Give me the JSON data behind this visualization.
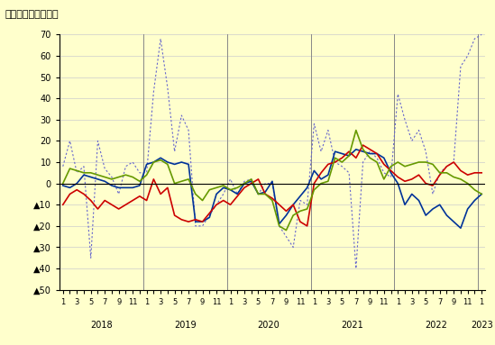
{
  "title": "（前年同月比、％）",
  "ylim": [
    -50,
    70
  ],
  "bg_color": "#ffffcc",
  "grid_color": "#cccccc",
  "blue_line": [
    -1,
    -2,
    0,
    4,
    3,
    2,
    1,
    -1,
    -2,
    -2,
    -2,
    -1,
    9,
    10,
    12,
    10,
    9,
    10,
    9,
    -18,
    -18,
    -16,
    -5,
    -2,
    -3,
    -5,
    0,
    1,
    -5,
    -4,
    1,
    -19,
    -15,
    -10,
    -6,
    -2,
    6,
    2,
    4,
    15,
    14,
    13,
    16,
    15,
    14,
    14,
    12,
    5,
    0,
    -10,
    -5,
    -8,
    -15,
    -12,
    -10,
    -15,
    -18,
    -21,
    -12,
    -8,
    -5
  ],
  "red_line": [
    -10,
    -5,
    -3,
    -5,
    -8,
    -12,
    -8,
    -10,
    -12,
    -10,
    -8,
    -6,
    -8,
    2,
    -5,
    -2,
    -15,
    -17,
    -18,
    -17,
    -18,
    -14,
    -10,
    -8,
    -10,
    -6,
    -2,
    0,
    2,
    -5,
    -7,
    -10,
    -13,
    -10,
    -18,
    -20,
    0,
    5,
    9,
    10,
    12,
    15,
    12,
    18,
    16,
    14,
    9,
    6,
    3,
    1,
    2,
    4,
    0,
    -1,
    4,
    8,
    10,
    6,
    4,
    5,
    5
  ],
  "green_line": [
    0,
    7,
    6,
    5,
    5,
    4,
    3,
    2,
    3,
    4,
    3,
    1,
    4,
    10,
    11,
    9,
    0,
    1,
    2,
    -5,
    -8,
    -3,
    -2,
    -1,
    -3,
    -2,
    0,
    2,
    -5,
    -5,
    -8,
    -20,
    -22,
    -15,
    -13,
    -12,
    -3,
    0,
    1,
    12,
    10,
    13,
    25,
    16,
    12,
    10,
    2,
    8,
    10,
    8,
    9,
    10,
    10,
    9,
    5,
    5,
    3,
    2,
    0,
    -3,
    -5
  ],
  "dotted_line": [
    8,
    20,
    5,
    8,
    -35,
    20,
    7,
    3,
    -5,
    8,
    10,
    5,
    5,
    43,
    68,
    45,
    15,
    32,
    25,
    -20,
    -20,
    -15,
    -10,
    -5,
    2,
    -5,
    1,
    2,
    -5,
    0,
    0,
    -20,
    -25,
    -30,
    -8,
    -10,
    28,
    15,
    25,
    10,
    8,
    5,
    -40,
    10,
    15,
    12,
    5,
    3,
    42,
    30,
    20,
    25,
    15,
    -5,
    5,
    8,
    10,
    55,
    60,
    68,
    70
  ],
  "line_colors": {
    "blue": "#003399",
    "red": "#cc0000",
    "green": "#669900",
    "dotted": "#6666cc"
  }
}
